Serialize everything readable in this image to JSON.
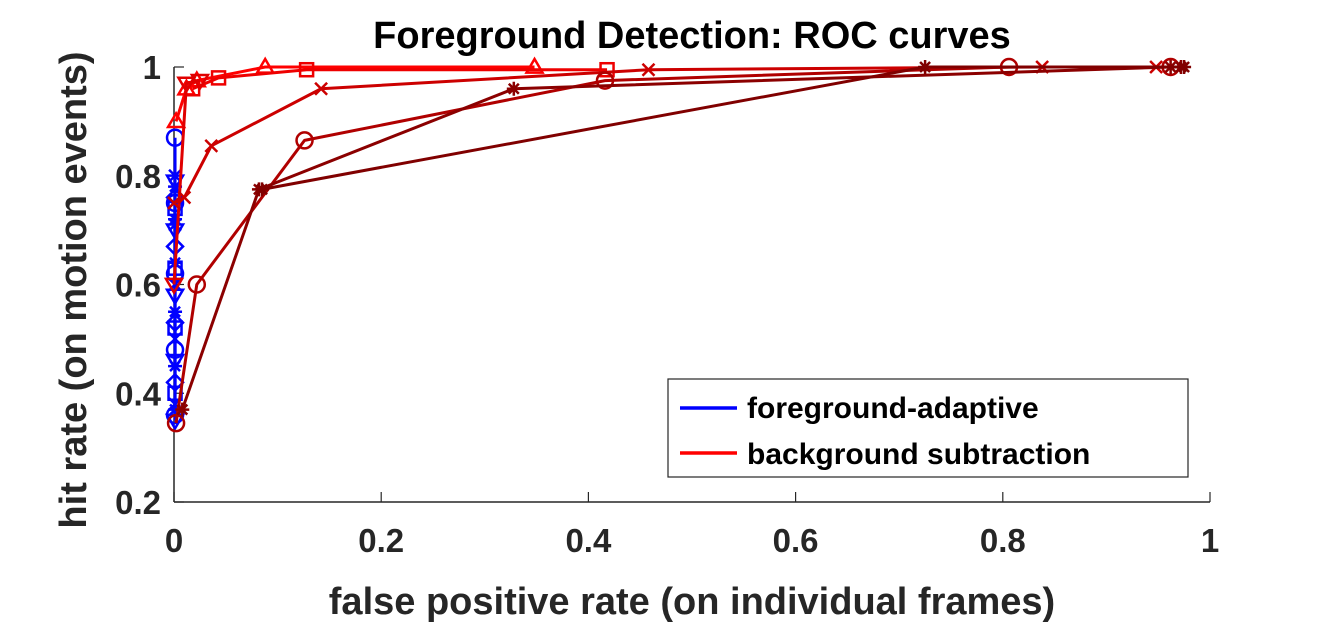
{
  "chart_data": {
    "type": "line",
    "title": "Foreground Detection: ROC curves",
    "xlabel": "false positive rate (on individual frames)",
    "ylabel": "hit rate (on motion events)",
    "xlim": [
      0,
      1
    ],
    "ylim": [
      0.2,
      1
    ],
    "xticks": [
      0,
      0.2,
      0.4,
      0.6,
      0.8,
      1
    ],
    "xtick_labels": [
      "0",
      "0.2",
      "0.4",
      "0.6",
      "0.8",
      "1"
    ],
    "yticks": [
      0.2,
      0.4,
      0.6,
      0.8,
      1
    ],
    "ytick_labels": [
      "0.2",
      "0.4",
      "0.6",
      "0.8",
      "1"
    ],
    "grid": false,
    "legend_position": "bottom-right",
    "legend": [
      {
        "label": "foreground-adaptive",
        "color": "#0000ff"
      },
      {
        "label": "background subtraction",
        "color": "#ff0000"
      }
    ],
    "series": [
      {
        "group": "foreground-adaptive",
        "color": "#0000ff",
        "marker": "asterisk",
        "x": [
          0.001,
          0.001,
          0.001,
          0.001,
          0.001,
          0.001
        ],
        "y": [
          0.37,
          0.45,
          0.55,
          0.64,
          0.72,
          0.78
        ]
      },
      {
        "group": "foreground-adaptive",
        "color": "#0000ff",
        "marker": "circle",
        "x": [
          0.001,
          0.001,
          0.001,
          0.001,
          0.001
        ],
        "y": [
          0.36,
          0.48,
          0.62,
          0.75,
          0.87
        ]
      },
      {
        "group": "foreground-adaptive",
        "color": "#0000ff",
        "marker": "x",
        "x": [
          0.001,
          0.001,
          0.001,
          0.001,
          0.001
        ],
        "y": [
          0.38,
          0.5,
          0.6,
          0.71,
          0.8
        ]
      },
      {
        "group": "foreground-adaptive",
        "color": "#0000ff",
        "marker": "square",
        "x": [
          0.001,
          0.001,
          0.001,
          0.001
        ],
        "y": [
          0.4,
          0.52,
          0.63,
          0.74
        ]
      },
      {
        "group": "foreground-adaptive",
        "color": "#0000ff",
        "marker": "triangle-down",
        "x": [
          0.001,
          0.001,
          0.001,
          0.001,
          0.001
        ],
        "y": [
          0.35,
          0.46,
          0.58,
          0.7,
          0.79
        ]
      },
      {
        "group": "foreground-adaptive",
        "color": "#0000ff",
        "marker": "diamond",
        "x": [
          0.001,
          0.001,
          0.001,
          0.001
        ],
        "y": [
          0.42,
          0.53,
          0.67,
          0.76
        ]
      },
      {
        "group": "background subtraction",
        "color": "#ff0000",
        "marker": "triangle",
        "x": [
          0.002,
          0.012,
          0.022,
          0.088,
          0.348
        ],
        "y": [
          0.9,
          0.96,
          0.975,
          1.0,
          1.0
        ]
      },
      {
        "group": "background subtraction",
        "color": "#ee0000",
        "marker": "square",
        "x": [
          0.018,
          0.043,
          0.128,
          0.418
        ],
        "y": [
          0.96,
          0.98,
          0.995,
          0.995
        ]
      },
      {
        "group": "background subtraction",
        "color": "#e00000",
        "marker": "triangle-down",
        "x": [
          0.0,
          0.012,
          0.025
        ],
        "y": [
          0.6,
          0.97,
          0.975
        ]
      },
      {
        "group": "background subtraction",
        "color": "#cc0000",
        "marker": "x",
        "x": [
          0.0,
          0.01,
          0.036,
          0.142,
          0.458,
          0.838,
          0.948
        ],
        "y": [
          0.75,
          0.76,
          0.855,
          0.96,
          0.995,
          1.0,
          1.0
        ]
      },
      {
        "group": "background subtraction",
        "color": "#b00000",
        "marker": "circle",
        "x": [
          0.002,
          0.022,
          0.126,
          0.416,
          0.806,
          0.962
        ],
        "y": [
          0.345,
          0.6,
          0.865,
          0.975,
          1.0,
          1.0
        ]
      },
      {
        "group": "background subtraction",
        "color": "#8b0000",
        "marker": "asterisk",
        "x": [
          0.008,
          0.082,
          0.328,
          0.962,
          0.972
        ],
        "y": [
          0.37,
          0.775,
          0.96,
          1.0,
          1.0
        ]
      },
      {
        "group": "background subtraction",
        "color": "#800000",
        "marker": "asterisk",
        "x": [
          0.085,
          0.725,
          0.975
        ],
        "y": [
          0.775,
          1.0,
          1.0
        ]
      }
    ]
  }
}
